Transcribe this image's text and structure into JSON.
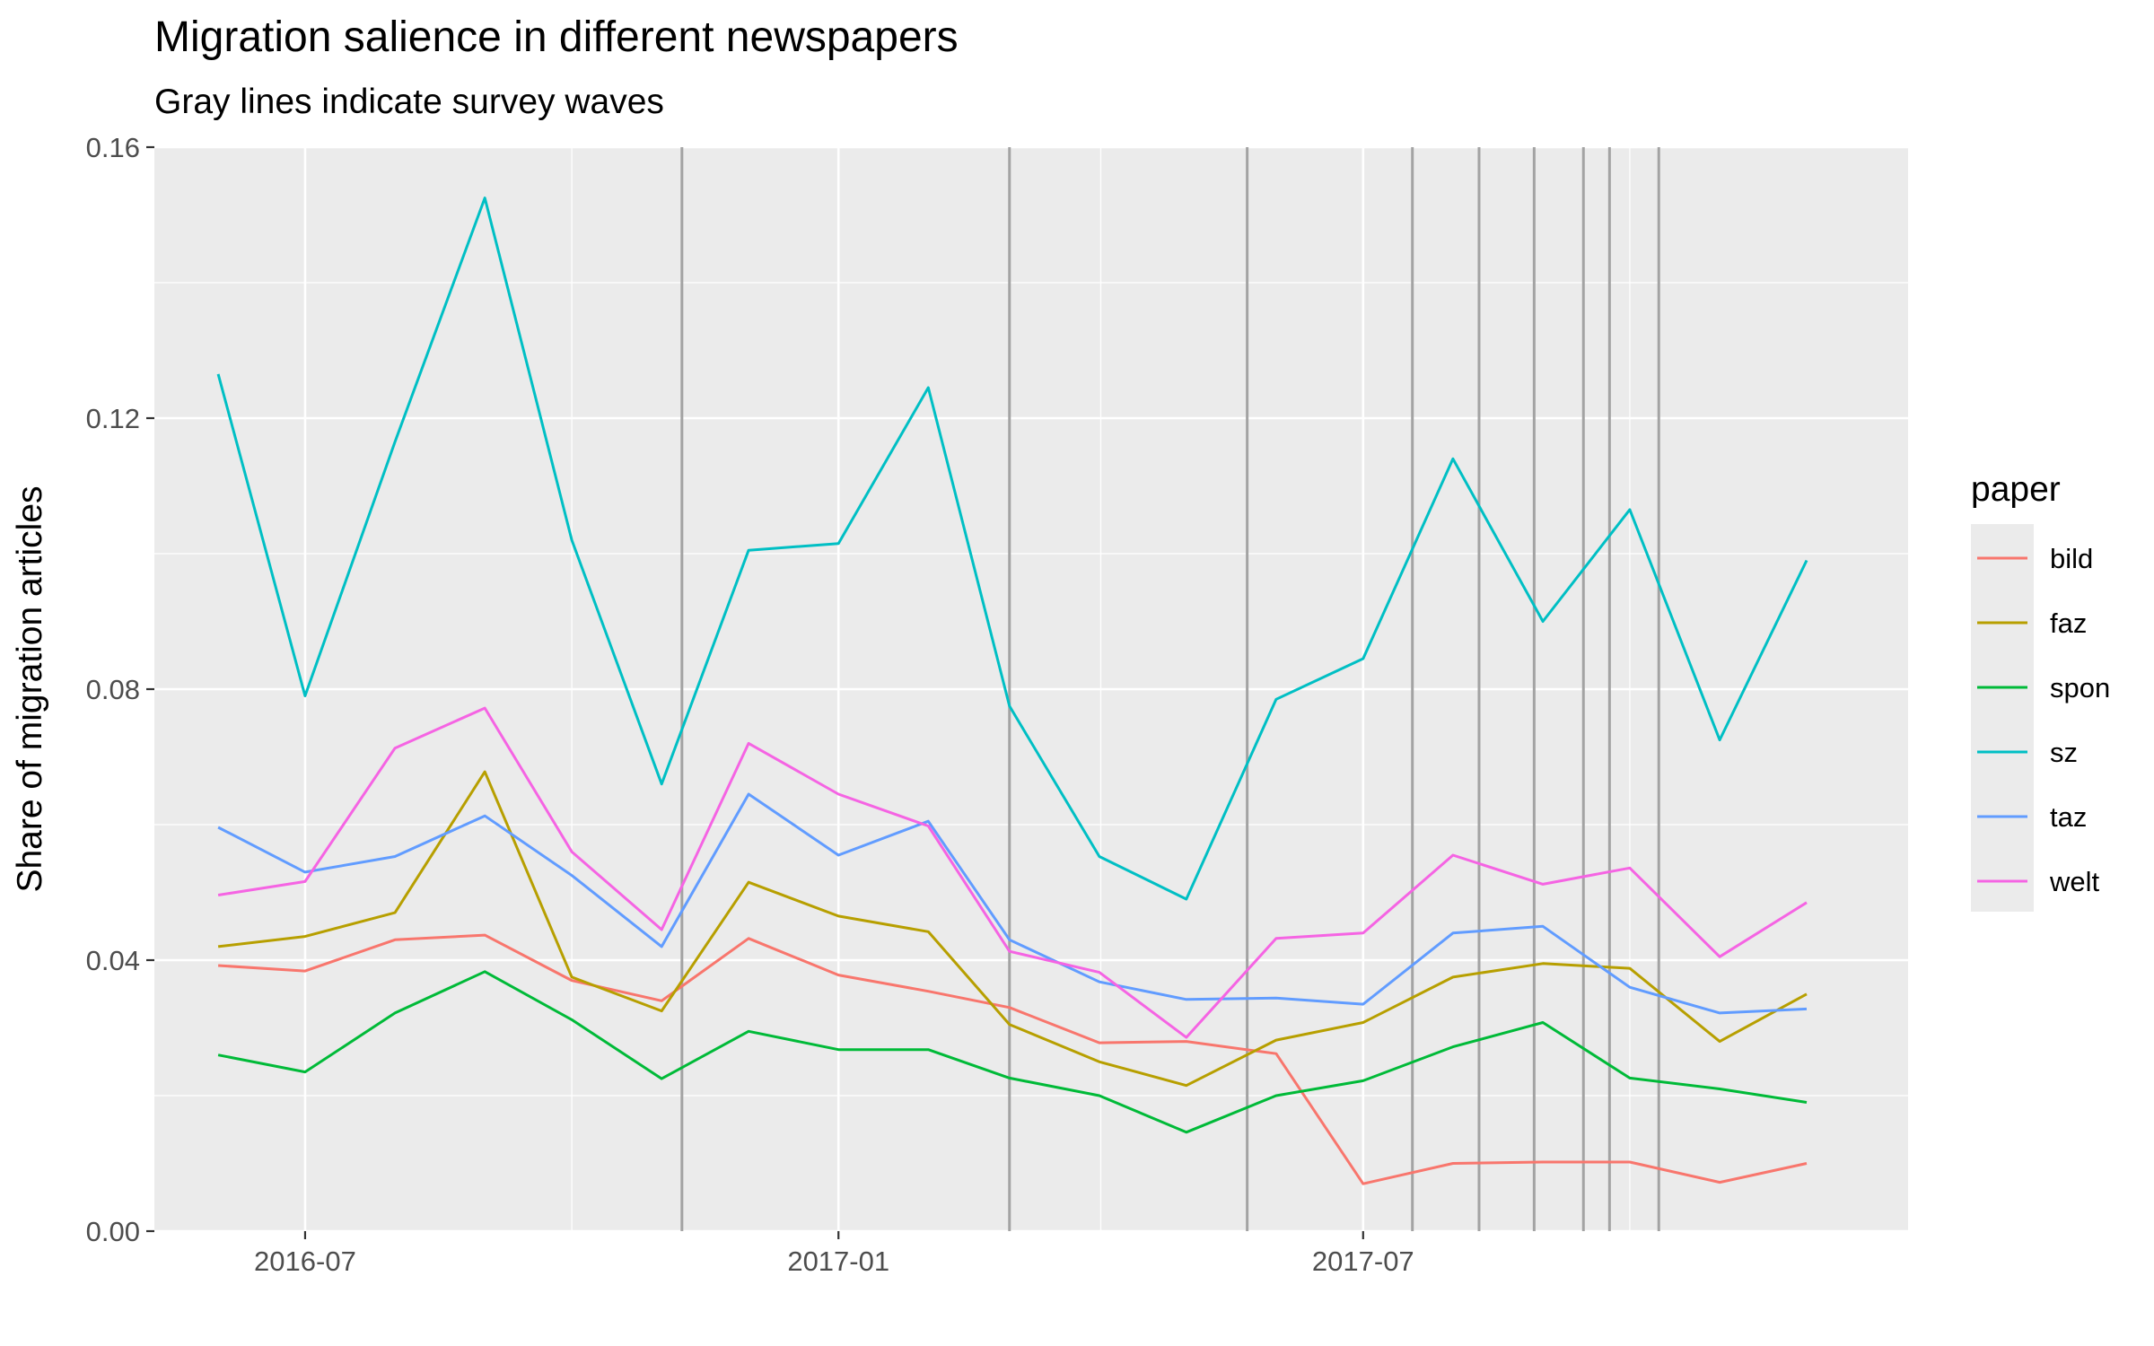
{
  "chart_data": {
    "type": "line",
    "title": "Migration salience in different newspapers",
    "subtitle": "Gray lines indicate survey waves",
    "xlabel": "",
    "ylabel": "Share of migration articles",
    "ylim": [
      0,
      0.16
    ],
    "y_ticks": [
      "0.00",
      "0.04",
      "0.08",
      "0.12",
      "0.16"
    ],
    "x_ticks": [
      {
        "date": "2016-07-01",
        "label": "2016-07"
      },
      {
        "date": "2017-01-01",
        "label": "2017-01"
      },
      {
        "date": "2017-07-01",
        "label": "2017-07"
      }
    ],
    "x_range": [
      "2016-05-10",
      "2018-01-05"
    ],
    "grid": true,
    "legend_title": "paper",
    "legend_position": "right",
    "survey_waves": [
      "2016-11-08",
      "2017-03-01",
      "2017-05-22",
      "2017-07-18",
      "2017-08-10",
      "2017-08-29",
      "2017-09-15",
      "2017-09-24",
      "2017-10-11"
    ],
    "x": [
      "2016-06-01",
      "2016-07-01",
      "2016-08-01",
      "2016-09-01",
      "2016-10-01",
      "2016-11-01",
      "2016-12-01",
      "2017-01-01",
      "2017-02-01",
      "2017-03-01",
      "2017-04-01",
      "2017-05-01",
      "2017-06-01",
      "2017-07-01",
      "2017-08-01",
      "2017-09-01",
      "2017-10-01",
      "2017-11-01",
      "2017-12-01"
    ],
    "series": [
      {
        "name": "bild",
        "color": "#F8766D",
        "values": [
          0.0392,
          0.0384,
          0.043,
          0.0437,
          0.037,
          0.034,
          0.0432,
          0.0378,
          0.0354,
          0.033,
          0.0278,
          0.028,
          0.0262,
          0.007,
          0.01,
          0.0102,
          0.0102,
          0.0072,
          0.01
        ]
      },
      {
        "name": "faz",
        "color": "#B79F00",
        "values": [
          0.042,
          0.0435,
          0.047,
          0.0678,
          0.0375,
          0.0325,
          0.0515,
          0.0465,
          0.0442,
          0.0305,
          0.025,
          0.0215,
          0.0282,
          0.0308,
          0.0375,
          0.0395,
          0.0388,
          0.028,
          0.035
        ]
      },
      {
        "name": "spon",
        "color": "#00BA38",
        "values": [
          0.026,
          0.0235,
          0.0322,
          0.0383,
          0.0312,
          0.0225,
          0.0295,
          0.0268,
          0.0268,
          0.0226,
          0.02,
          0.0146,
          0.02,
          0.0222,
          0.0272,
          0.0308,
          0.0226,
          0.021,
          0.019
        ]
      },
      {
        "name": "sz",
        "color": "#00BFC4",
        "values": [
          0.1265,
          0.079,
          0.1165,
          0.1525,
          0.102,
          0.066,
          0.1005,
          0.1015,
          0.1245,
          0.0775,
          0.0553,
          0.049,
          0.0785,
          0.0845,
          0.114,
          0.09,
          0.1065,
          0.0725,
          0.099
        ]
      },
      {
        "name": "taz",
        "color": "#619CFF",
        "values": [
          0.0596,
          0.053,
          0.0553,
          0.0613,
          0.0525,
          0.042,
          0.0645,
          0.0555,
          0.0605,
          0.043,
          0.0368,
          0.0342,
          0.0344,
          0.0335,
          0.044,
          0.045,
          0.036,
          0.0322,
          0.0328
        ]
      },
      {
        "name": "welt",
        "color": "#F564E3",
        "values": [
          0.0496,
          0.0516,
          0.0713,
          0.0772,
          0.056,
          0.0445,
          0.072,
          0.0645,
          0.0598,
          0.0413,
          0.0382,
          0.0286,
          0.0432,
          0.044,
          0.0555,
          0.0512,
          0.0536,
          0.0405,
          0.0485
        ]
      }
    ]
  }
}
